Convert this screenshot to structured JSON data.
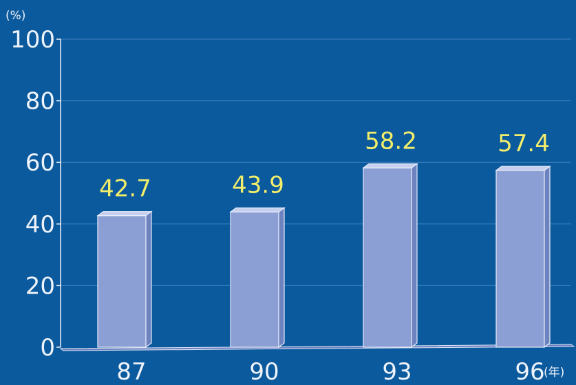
{
  "chart_data": {
    "type": "bar",
    "categories": [
      "87",
      "90",
      "93",
      "96"
    ],
    "values": [
      42.7,
      43.9,
      58.2,
      57.4
    ],
    "value_labels": [
      "42.7",
      "43.9",
      "58.2",
      "57.4"
    ],
    "title": "",
    "xlabel": "",
    "ylabel": "",
    "y_unit": "(%)",
    "x_unit": "(年)",
    "ylim": [
      0,
      100
    ],
    "yticks": [
      0,
      20,
      40,
      60,
      80,
      100
    ],
    "ytick_labels": [
      "0",
      "20",
      "40",
      "60",
      "80",
      "100"
    ],
    "grid": true,
    "style": "3d-bar",
    "colors": {
      "background": "#0c5a9e",
      "bar_front": "#8b9fd4",
      "bar_top": "#c5cfee",
      "bar_side": "#6d83c0",
      "value_label": "#f3ee6a",
      "axis_text": "#eef3fa",
      "grid": "#3f82bd"
    }
  }
}
